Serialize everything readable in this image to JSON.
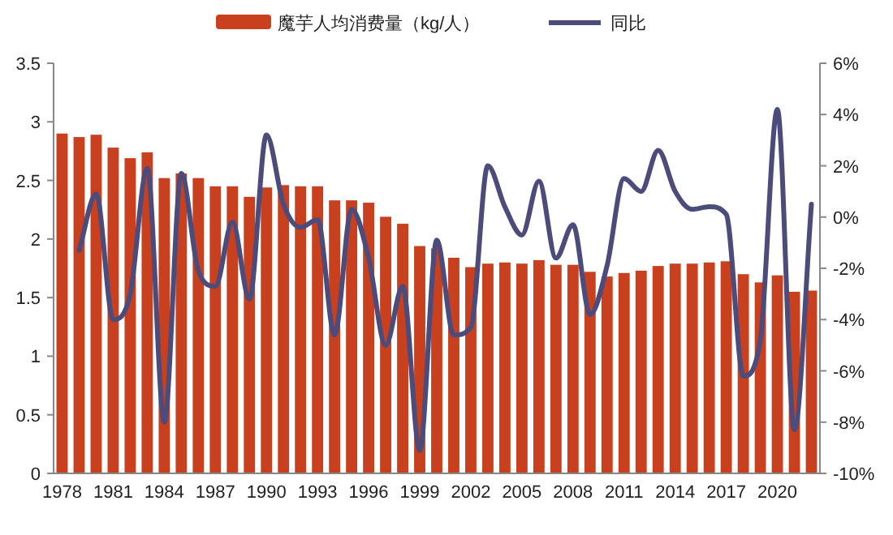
{
  "chart_data": {
    "type": "bar",
    "legend": "top",
    "grid": false,
    "categories": [
      "1978",
      null,
      null,
      "1981",
      null,
      null,
      "1984",
      null,
      null,
      "1987",
      null,
      null,
      "1990",
      null,
      null,
      "1993",
      null,
      null,
      "1996",
      null,
      null,
      "1999",
      null,
      null,
      "2002",
      null,
      null,
      "2005",
      null,
      null,
      "2008",
      null,
      null,
      "2011",
      null,
      null,
      "2014",
      null,
      null,
      "2017",
      null,
      null,
      "2020",
      null,
      null
    ],
    "ylim": [
      0,
      3.5
    ],
    "yticks": [
      0,
      0.5,
      1,
      1.5,
      2,
      2.5,
      3,
      3.5
    ],
    "y2lim": [
      -10,
      6
    ],
    "y2ticks": [
      {
        "value": -10,
        "label": "-10%"
      },
      {
        "value": -8,
        "label": "-8%"
      },
      {
        "value": -6,
        "label": "-6%"
      },
      {
        "value": -4,
        "label": "-4%"
      },
      {
        "value": -2,
        "label": "-2%"
      },
      {
        "value": 0,
        "label": "0%"
      },
      {
        "value": 2,
        "label": "2%"
      },
      {
        "value": 4,
        "label": "4%"
      },
      {
        "value": 6,
        "label": "6%"
      }
    ],
    "series": [
      {
        "name": "魔芋人均消费量（kg/人）",
        "color": "#c9401f",
        "values": [
          2.9,
          2.87,
          2.89,
          2.78,
          2.69,
          2.74,
          2.52,
          2.56,
          2.52,
          2.45,
          2.45,
          2.36,
          2.44,
          2.46,
          2.45,
          2.45,
          2.33,
          2.33,
          2.31,
          2.19,
          2.13,
          1.94,
          1.92,
          1.84,
          1.76,
          1.79,
          1.8,
          1.79,
          1.82,
          1.78,
          1.78,
          1.72,
          1.68,
          1.71,
          1.73,
          1.77,
          1.79,
          1.79,
          1.8,
          1.81,
          1.7,
          1.63,
          1.69,
          1.55,
          1.56
        ]
      },
      {
        "name": "同比",
        "type": "line",
        "axis": "y2",
        "color": "#4b4b7c",
        "values": [
          null,
          -1.3,
          0.9,
          -4.0,
          -3.0,
          1.9,
          -8.0,
          1.7,
          -2.1,
          -2.7,
          -0.2,
          -3.2,
          3.2,
          0.5,
          -0.4,
          -0.1,
          -4.6,
          0.3,
          -1.6,
          -5.0,
          -2.7,
          -9.1,
          -0.9,
          -4.6,
          -4.3,
          2.0,
          0.4,
          -0.7,
          1.4,
          -1.6,
          -0.3,
          -3.8,
          -1.9,
          1.5,
          1.0,
          2.6,
          1.0,
          0.3,
          0.4,
          0.1,
          -6.2,
          -4.8,
          4.2,
          -8.3,
          0.5
        ]
      }
    ]
  }
}
